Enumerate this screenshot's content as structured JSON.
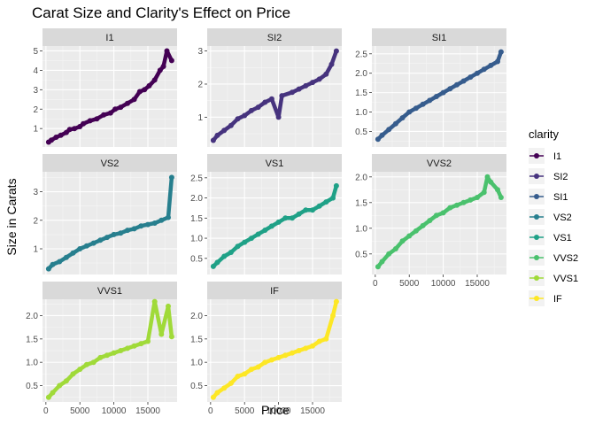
{
  "chart_data": {
    "type": "scatter",
    "title": "Carat Size and Clarity's Effect on Price",
    "xlabel": "Price",
    "ylabel": "Size in Carats",
    "legend": {
      "title": "clarity",
      "position": "right"
    },
    "grid": true,
    "x_ticks": [
      0,
      5000,
      10000,
      15000
    ],
    "xlim": [
      -500,
      19300
    ],
    "series_geom": "points connected by lines",
    "series": [
      {
        "name": "I1",
        "color": "#440154",
        "ylim": [
          0.05,
          5.25
        ],
        "y_ticks": [
          1,
          2,
          3,
          4,
          5
        ],
        "points": [
          [
            400,
            0.3
          ],
          [
            800,
            0.4
          ],
          [
            1500,
            0.55
          ],
          [
            2200,
            0.65
          ],
          [
            3000,
            0.8
          ],
          [
            3500,
            0.95
          ],
          [
            4200,
            1.0
          ],
          [
            5000,
            1.1
          ],
          [
            5500,
            1.25
          ],
          [
            6500,
            1.4
          ],
          [
            7500,
            1.5
          ],
          [
            8500,
            1.7
          ],
          [
            9500,
            1.8
          ],
          [
            10200,
            2.0
          ],
          [
            11000,
            2.1
          ],
          [
            12000,
            2.3
          ],
          [
            13000,
            2.5
          ],
          [
            13800,
            2.9
          ],
          [
            14500,
            3.0
          ],
          [
            15200,
            3.2
          ],
          [
            16000,
            3.5
          ],
          [
            16800,
            4.0
          ],
          [
            17300,
            4.2
          ],
          [
            17800,
            5.0
          ],
          [
            18500,
            4.5
          ]
        ]
      },
      {
        "name": "SI2",
        "color": "#46337e",
        "ylim": [
          0.1,
          3.15
        ],
        "y_ticks": [
          1,
          2,
          3
        ],
        "points": [
          [
            400,
            0.3
          ],
          [
            1000,
            0.45
          ],
          [
            2000,
            0.6
          ],
          [
            3000,
            0.75
          ],
          [
            4000,
            0.95
          ],
          [
            5000,
            1.05
          ],
          [
            6000,
            1.2
          ],
          [
            7000,
            1.3
          ],
          [
            8000,
            1.45
          ],
          [
            9000,
            1.55
          ],
          [
            10000,
            1.0
          ],
          [
            10500,
            1.65
          ],
          [
            12000,
            1.75
          ],
          [
            13000,
            1.85
          ],
          [
            14000,
            1.95
          ],
          [
            15000,
            2.05
          ],
          [
            16000,
            2.15
          ],
          [
            17000,
            2.3
          ],
          [
            17800,
            2.6
          ],
          [
            18500,
            3.0
          ]
        ]
      },
      {
        "name": "SI1",
        "color": "#365c8d",
        "ylim": [
          0.1,
          2.7
        ],
        "y_ticks": [
          0.5,
          1.0,
          1.5,
          2.0,
          2.5
        ],
        "points": [
          [
            400,
            0.3
          ],
          [
            1000,
            0.4
          ],
          [
            2000,
            0.55
          ],
          [
            3000,
            0.7
          ],
          [
            4000,
            0.85
          ],
          [
            5000,
            1.0
          ],
          [
            6000,
            1.1
          ],
          [
            7000,
            1.2
          ],
          [
            8000,
            1.3
          ],
          [
            9000,
            1.4
          ],
          [
            10000,
            1.5
          ],
          [
            11000,
            1.6
          ],
          [
            12000,
            1.7
          ],
          [
            13000,
            1.8
          ],
          [
            14000,
            1.9
          ],
          [
            15000,
            2.0
          ],
          [
            16000,
            2.1
          ],
          [
            17000,
            2.2
          ],
          [
            18000,
            2.3
          ],
          [
            18500,
            2.55
          ]
        ]
      },
      {
        "name": "VS2",
        "color": "#277f8e",
        "ylim": [
          0.1,
          3.7
        ],
        "y_ticks": [
          1,
          2,
          3
        ],
        "points": [
          [
            400,
            0.3
          ],
          [
            1000,
            0.45
          ],
          [
            2000,
            0.55
          ],
          [
            3000,
            0.7
          ],
          [
            4000,
            0.85
          ],
          [
            5000,
            1.0
          ],
          [
            6000,
            1.1
          ],
          [
            7000,
            1.2
          ],
          [
            8000,
            1.3
          ],
          [
            9000,
            1.4
          ],
          [
            10000,
            1.5
          ],
          [
            11000,
            1.55
          ],
          [
            12000,
            1.65
          ],
          [
            13000,
            1.7
          ],
          [
            14000,
            1.8
          ],
          [
            15000,
            1.85
          ],
          [
            16000,
            1.9
          ],
          [
            17000,
            2.0
          ],
          [
            18000,
            2.1
          ],
          [
            18500,
            3.5
          ]
        ]
      },
      {
        "name": "VS1",
        "color": "#1fa187",
        "ylim": [
          0.1,
          2.65
        ],
        "y_ticks": [
          0.5,
          1.0,
          1.5,
          2.0,
          2.5
        ],
        "points": [
          [
            400,
            0.3
          ],
          [
            1000,
            0.4
          ],
          [
            2000,
            0.55
          ],
          [
            3000,
            0.65
          ],
          [
            4000,
            0.8
          ],
          [
            5000,
            0.9
          ],
          [
            6000,
            1.0
          ],
          [
            7000,
            1.1
          ],
          [
            8000,
            1.2
          ],
          [
            9000,
            1.3
          ],
          [
            10000,
            1.4
          ],
          [
            11000,
            1.5
          ],
          [
            12000,
            1.5
          ],
          [
            13000,
            1.6
          ],
          [
            14000,
            1.7
          ],
          [
            15000,
            1.7
          ],
          [
            16000,
            1.8
          ],
          [
            17000,
            1.9
          ],
          [
            18000,
            2.0
          ],
          [
            18500,
            2.3
          ]
        ]
      },
      {
        "name": "VVS2",
        "color": "#4ac16d",
        "ylim": [
          0.1,
          2.1
        ],
        "y_ticks": [
          0.5,
          1.0,
          1.5,
          2.0
        ],
        "points": [
          [
            400,
            0.25
          ],
          [
            1000,
            0.35
          ],
          [
            2000,
            0.5
          ],
          [
            3000,
            0.6
          ],
          [
            4000,
            0.75
          ],
          [
            5000,
            0.85
          ],
          [
            6000,
            0.95
          ],
          [
            7000,
            1.05
          ],
          [
            8000,
            1.15
          ],
          [
            9000,
            1.25
          ],
          [
            10000,
            1.3
          ],
          [
            11000,
            1.4
          ],
          [
            12000,
            1.45
          ],
          [
            13000,
            1.5
          ],
          [
            14000,
            1.55
          ],
          [
            15000,
            1.6
          ],
          [
            16000,
            1.7
          ],
          [
            16500,
            2.0
          ],
          [
            17000,
            1.9
          ],
          [
            18000,
            1.75
          ],
          [
            18500,
            1.6
          ]
        ]
      },
      {
        "name": "VVS1",
        "color": "#a0da39",
        "ylim": [
          0.15,
          2.35
        ],
        "y_ticks": [
          0.5,
          1.0,
          1.5,
          2.0
        ],
        "points": [
          [
            400,
            0.25
          ],
          [
            1000,
            0.35
          ],
          [
            2000,
            0.5
          ],
          [
            3000,
            0.6
          ],
          [
            4000,
            0.75
          ],
          [
            5000,
            0.85
          ],
          [
            6000,
            0.95
          ],
          [
            7000,
            1.0
          ],
          [
            8000,
            1.1
          ],
          [
            9000,
            1.15
          ],
          [
            10000,
            1.2
          ],
          [
            11000,
            1.25
          ],
          [
            12000,
            1.3
          ],
          [
            13000,
            1.35
          ],
          [
            14000,
            1.4
          ],
          [
            15000,
            1.45
          ],
          [
            16000,
            2.3
          ],
          [
            17000,
            1.6
          ],
          [
            18000,
            2.2
          ],
          [
            18500,
            1.55
          ]
        ]
      },
      {
        "name": "IF",
        "color": "#fde725",
        "ylim": [
          0.15,
          2.35
        ],
        "y_ticks": [
          0.5,
          1.0,
          1.5,
          2.0
        ],
        "points": [
          [
            400,
            0.25
          ],
          [
            1000,
            0.35
          ],
          [
            2000,
            0.45
          ],
          [
            3000,
            0.55
          ],
          [
            4000,
            0.7
          ],
          [
            5000,
            0.75
          ],
          [
            6000,
            0.85
          ],
          [
            7000,
            0.9
          ],
          [
            8000,
            1.0
          ],
          [
            9000,
            1.05
          ],
          [
            10000,
            1.1
          ],
          [
            11000,
            1.15
          ],
          [
            12000,
            1.2
          ],
          [
            13000,
            1.25
          ],
          [
            14000,
            1.3
          ],
          [
            15000,
            1.35
          ],
          [
            16000,
            1.45
          ],
          [
            17000,
            1.5
          ],
          [
            18000,
            2.0
          ],
          [
            18500,
            2.3
          ]
        ]
      }
    ]
  }
}
